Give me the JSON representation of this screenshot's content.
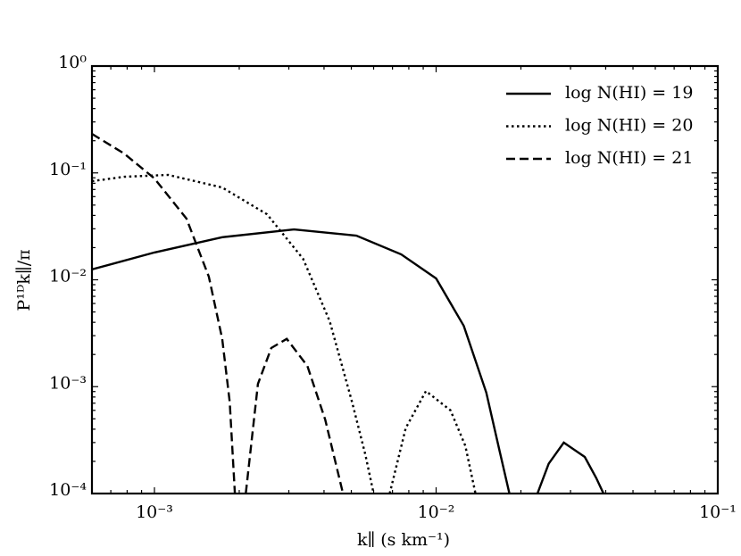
{
  "chart_data": {
    "type": "line",
    "xlabel": "k∥ (s km⁻¹)",
    "ylabel": "P¹ᴰk∥/π",
    "xscale": "log",
    "yscale": "log",
    "xlim": [
      0.0006,
      0.1
    ],
    "ylim": [
      0.0001,
      1
    ],
    "xticks": [
      {
        "value": 0.001,
        "label": "10⁻³"
      },
      {
        "value": 0.01,
        "label": "10⁻²"
      },
      {
        "value": 0.1,
        "label": "10⁻¹"
      }
    ],
    "yticks": [
      {
        "value": 0.0001,
        "label": "10⁻⁴"
      },
      {
        "value": 0.001,
        "label": "10⁻³"
      },
      {
        "value": 0.01,
        "label": "10⁻²"
      },
      {
        "value": 0.1,
        "label": "10⁻¹"
      },
      {
        "value": 1,
        "label": "10⁰"
      }
    ],
    "legend": "upper right",
    "series": [
      {
        "name": "log N(HI) = 19",
        "color": "#000000",
        "linestyle": "solid",
        "x": [
          0.0006,
          0.001,
          0.00174,
          0.00313,
          0.00521,
          0.00752,
          0.01,
          0.01254,
          0.01507,
          0.0168,
          0.0182,
          null,
          0.0229,
          0.0251,
          0.0284,
          0.0337,
          0.037,
          0.0393
        ],
        "values": [
          0.0125,
          0.018,
          0.025,
          0.0296,
          0.0259,
          0.0173,
          0.0103,
          0.0037,
          0.00088,
          0.00025,
          0.0001,
          null,
          0.0001,
          0.00019,
          0.0003,
          0.00022,
          0.00014,
          0.0001
        ]
      },
      {
        "name": "log N(HI) = 20",
        "color": "#000000",
        "linestyle": "dotted",
        "x": [
          0.0006,
          0.00078,
          0.00112,
          0.00174,
          0.00251,
          0.00337,
          0.00419,
          0.00503,
          0.00561,
          0.006,
          null,
          0.00684,
          0.0078,
          0.0092,
          0.01125,
          0.0127,
          0.0138
        ],
        "values": [
          0.0837,
          0.092,
          0.0957,
          0.073,
          0.041,
          0.0157,
          0.0041,
          0.00072,
          0.00023,
          0.0001,
          null,
          0.0001,
          0.00041,
          0.00091,
          0.0006,
          0.00028,
          0.0001
        ]
      },
      {
        "name": "log N(HI) = 21",
        "color": "#000000",
        "linestyle": "dashed",
        "x": [
          0.0006,
          0.00078,
          0.001,
          0.0013,
          0.00156,
          0.00174,
          0.00185,
          0.00193,
          null,
          0.00211,
          0.00233,
          0.0026,
          0.00295,
          0.00349,
          0.00404,
          0.00467
        ],
        "values": [
          0.232,
          0.152,
          0.0887,
          0.0373,
          0.0107,
          0.0028,
          0.00072,
          0.0001,
          null,
          0.0001,
          0.00106,
          0.0023,
          0.0028,
          0.00156,
          0.00049,
          0.0001
        ]
      }
    ]
  }
}
